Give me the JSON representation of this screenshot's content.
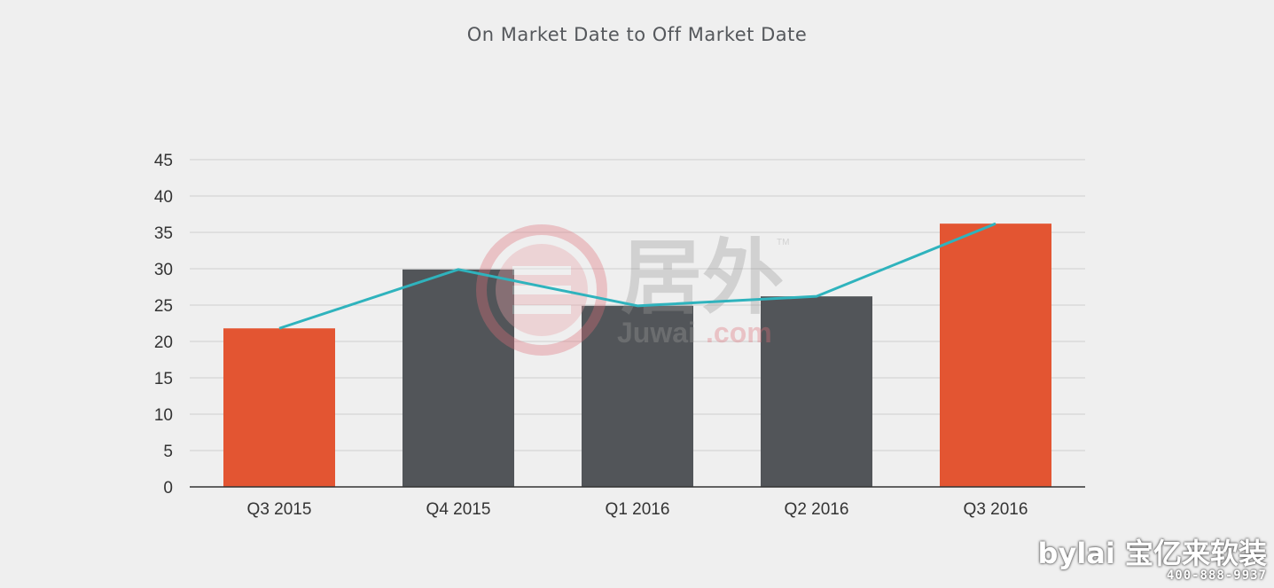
{
  "chart_data": {
    "type": "bar",
    "title": "On Market Date to Off Market Date",
    "categories": [
      "Q3 2015",
      "Q4 2015",
      "Q1 2016",
      "Q2 2016",
      "Q3 2016"
    ],
    "series": [
      {
        "type": "bar",
        "values": [
          21.8,
          29.9,
          24.9,
          26.2,
          36.2
        ]
      },
      {
        "type": "line",
        "values": [
          21.8,
          29.9,
          24.9,
          26.2,
          36.2
        ]
      }
    ],
    "bar_colors": [
      "#e35532",
      "#525559",
      "#525559",
      "#525559",
      "#e35532"
    ],
    "line_color": "#2fb3bd",
    "ylim": [
      0,
      45
    ],
    "yticks": [
      0,
      5,
      10,
      15,
      20,
      25,
      30,
      35,
      40,
      45
    ],
    "grid": true,
    "legend": "none"
  },
  "watermark": {
    "chinese": "居外",
    "latin": "Juwai",
    "domain": ".com",
    "tm": "TM"
  },
  "corner_logo": {
    "brand": "bylai 宝亿来软装",
    "phone": "400-888-9937"
  }
}
